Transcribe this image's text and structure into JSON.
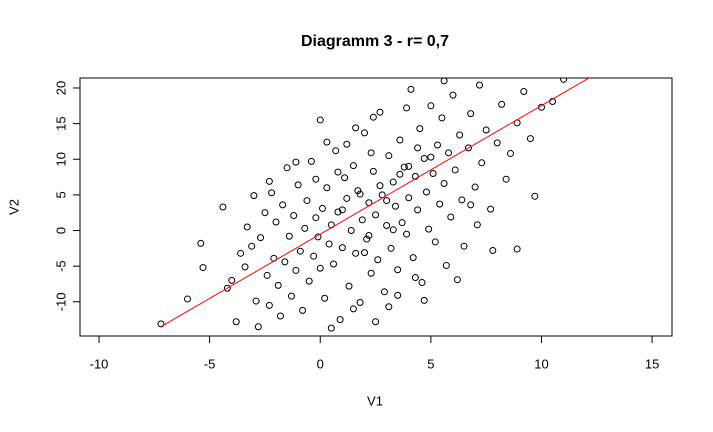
{
  "chart_data": {
    "type": "scatter",
    "title": "Diagramm 3 - r= 0,7",
    "xlabel": "V1",
    "ylabel": "V2",
    "x": [
      -7.2,
      -6,
      -5.4,
      -5.3,
      -4.4,
      -4.2,
      -4,
      -3.8,
      -3.6,
      -3.4,
      -3.3,
      -3.1,
      -3,
      -2.9,
      -2.7,
      -2.5,
      -2.4,
      -2.3,
      -2.2,
      -2.1,
      -2,
      -1.9,
      -1.8,
      -1.7,
      -1.6,
      -1.5,
      -1.4,
      -1.3,
      -1.2,
      -1.1,
      -1,
      -0.9,
      -0.8,
      -0.7,
      -0.6,
      -0.5,
      -0.4,
      -0.3,
      -0.2,
      -0.1,
      0,
      0,
      0.1,
      0.2,
      0.3,
      0.4,
      0.5,
      0.6,
      0.7,
      0.8,
      0.9,
      1,
      1.1,
      1.2,
      1.3,
      1.4,
      1.5,
      1.6,
      1.7,
      1.8,
      1.9,
      2,
      2.1,
      2.2,
      2.3,
      2.4,
      2.5,
      2.6,
      2.7,
      2.8,
      2.9,
      3,
      3.1,
      3.2,
      3.3,
      3.4,
      3.5,
      3.6,
      3.7,
      3.8,
      3.9,
      4,
      4.1,
      4.2,
      4.3,
      4.4,
      4.5,
      4.6,
      4.7,
      4.8,
      4.9,
      5,
      5.1,
      5.2,
      5.3,
      5.4,
      5.5,
      5.6,
      5.7,
      5.8,
      5.9,
      6,
      6.1,
      6.3,
      6.4,
      6.5,
      6.7,
      6.8,
      7,
      7.2,
      7.3,
      7.5,
      7.7,
      7.8,
      8,
      8.2,
      8.4,
      8.6,
      8.9,
      9.2,
      9.5,
      9.7,
      10,
      10.5,
      11,
      0.5,
      1.5,
      2.5,
      3.5,
      -2.8,
      1.2,
      2.3,
      0.8,
      -0.2,
      3.1,
      4.3,
      6.2,
      7.1,
      5.6,
      3.9,
      2.4,
      1.6,
      0.3,
      -1.1,
      -2.3,
      4.7,
      6.8,
      8.9,
      2,
      3,
      4,
      2.7,
      1.8,
      3.6,
      4.4,
      5,
      2.2,
      1,
      3.3
    ],
    "y": [
      -13.1,
      -9.6,
      -1.8,
      -5.2,
      3.3,
      -8.1,
      -7,
      -12.8,
      -3.2,
      -5.1,
      0.5,
      -2.2,
      4.9,
      -9.9,
      -1,
      2.5,
      -6.3,
      -10.5,
      5.3,
      -3.9,
      1.2,
      -7.7,
      -12,
      3.6,
      -4.4,
      8.8,
      -0.8,
      -9.2,
      2.1,
      -5.6,
      6.4,
      -2.9,
      -11.2,
      0.3,
      4.2,
      -7.1,
      9.7,
      -3.6,
      1.8,
      -0.9,
      15.5,
      -5.3,
      3.1,
      -9.5,
      6,
      -1.9,
      0.8,
      -4.7,
      11.2,
      2.6,
      -12.5,
      -2.4,
      7.4,
      4.5,
      -7.8,
      0,
      9.1,
      -3.2,
      5.6,
      -10.1,
      1.5,
      13.7,
      -1.2,
      3.9,
      -6,
      8.3,
      2.2,
      -4.1,
      16.6,
      5,
      -8.6,
      0.7,
      10.5,
      -2.5,
      6.8,
      3.4,
      -5.5,
      12.7,
      1.1,
      8.9,
      -0.5,
      4.6,
      19.8,
      -3.8,
      7.6,
      2.9,
      14.3,
      -7.3,
      10.1,
      5.4,
      0.2,
      17.5,
      8,
      -1.6,
      12,
      3.7,
      15.8,
      6.6,
      -4.9,
      10.9,
      1.9,
      19,
      8.5,
      13.4,
      4.3,
      -2.2,
      11.6,
      16.4,
      6.1,
      20.4,
      9.5,
      14.1,
      3,
      -2.8,
      12.3,
      17.7,
      7.2,
      10.8,
      15.1,
      19.5,
      12.9,
      4.8,
      17.3,
      18.1,
      21.2,
      -13.7,
      -11,
      -12.8,
      -9.1,
      -13.5,
      12.1,
      10.9,
      8.2,
      7.2,
      -10.7,
      -6.6,
      -6.9,
      0.8,
      21,
      17.2,
      15.9,
      14.4,
      12.4,
      9.6,
      6.9,
      -9.8,
      3.6,
      -2.6,
      -3.1,
      4.2,
      9,
      6.3,
      5.1,
      7.9,
      11.6,
      10.3,
      -0.7,
      2.9,
      0.1
    ],
    "color": "#000000",
    "fit_line": {
      "x": [
        -7.2,
        12.2
      ],
      "y": [
        -13.5,
        21.5
      ],
      "color": "#ff0000"
    },
    "xlim": [
      -10.86,
      15.9
    ],
    "ylim": [
      -14.8,
      21.4
    ],
    "xticks": [
      -10,
      -5,
      0,
      5,
      10,
      15
    ],
    "yticks": [
      -10,
      -5,
      0,
      5,
      10,
      15,
      20
    ]
  }
}
